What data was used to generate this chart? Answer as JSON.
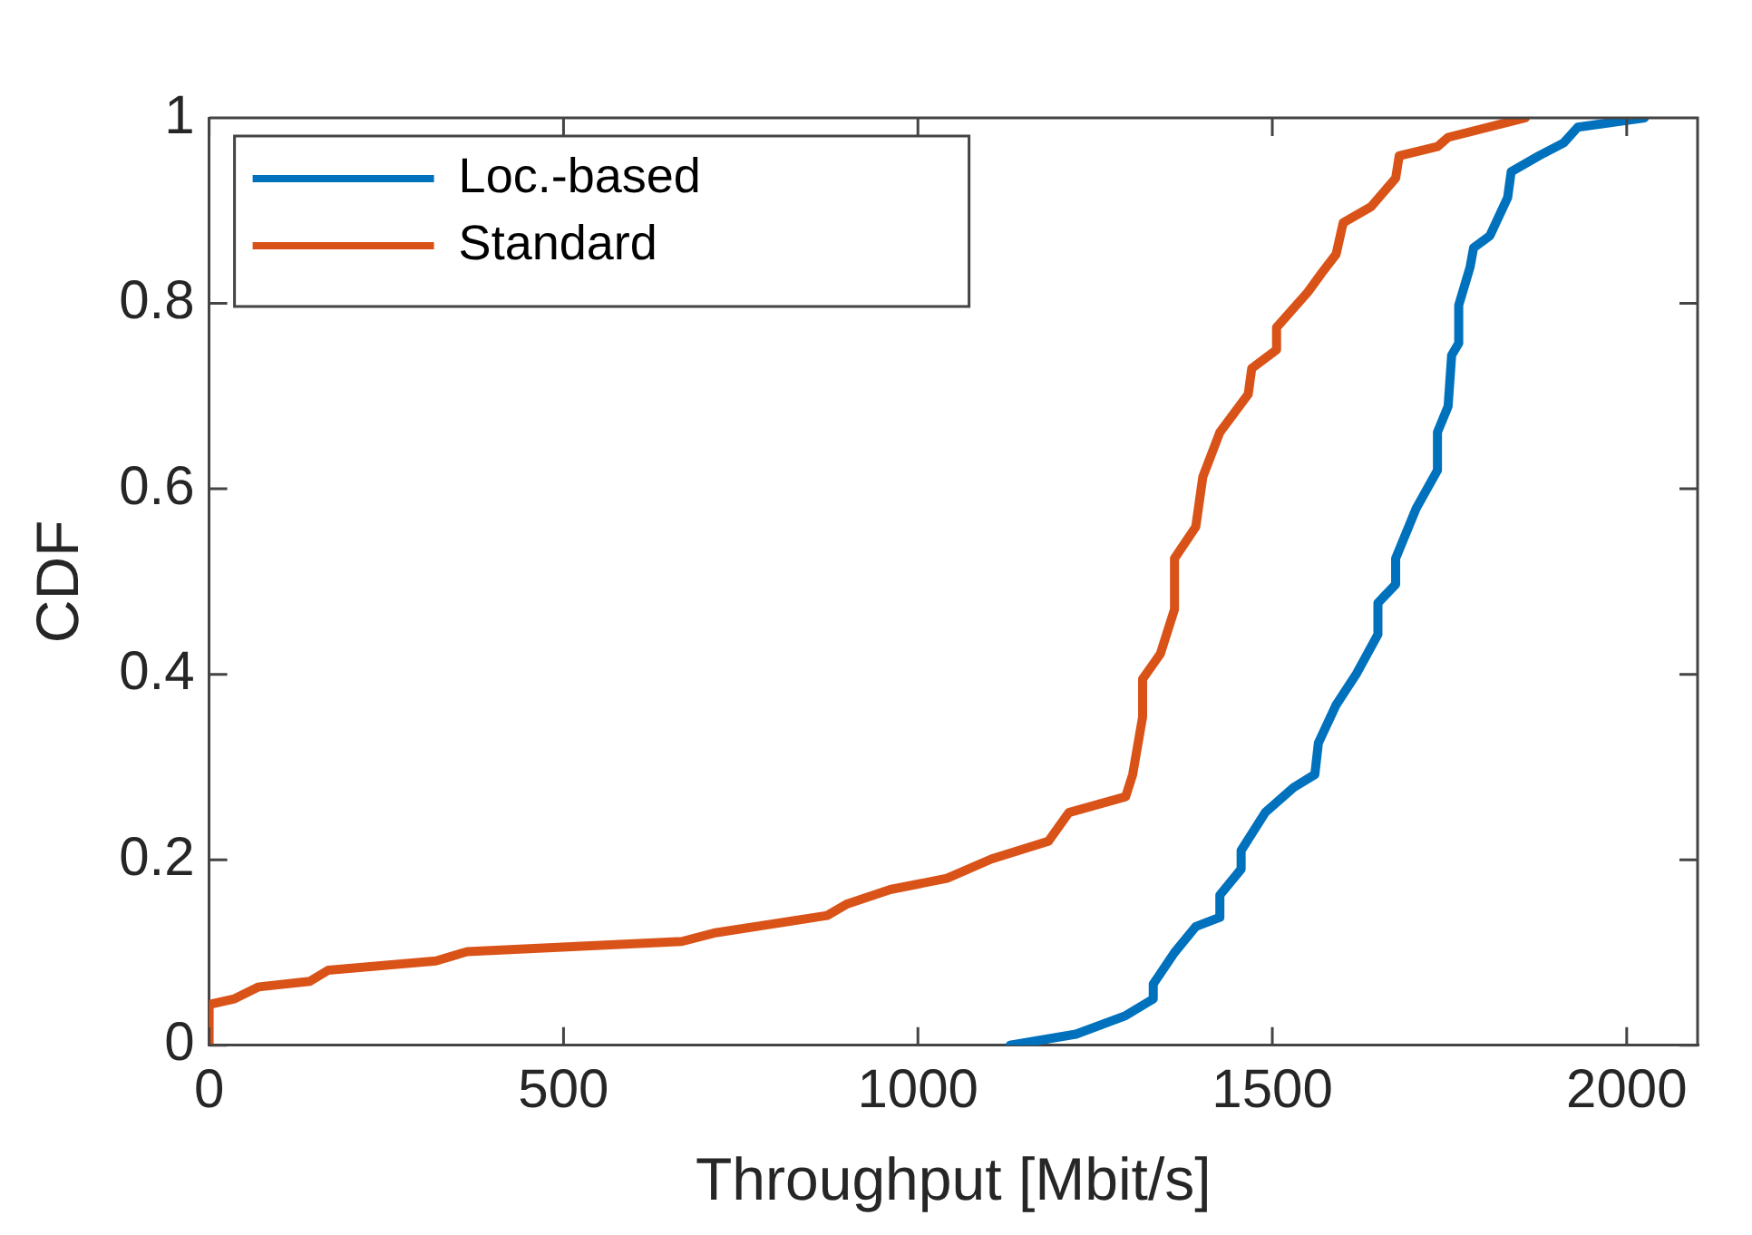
{
  "chart_data": {
    "type": "line",
    "xlabel": "Throughput [Mbit/s]",
    "ylabel": "CDF",
    "xlim": [
      0,
      2100
    ],
    "xticks": [
      0,
      500,
      1000,
      1500,
      2000
    ],
    "ylim": [
      0,
      1
    ],
    "yticks": [
      0,
      0.2,
      0.4,
      0.6,
      0.8,
      1
    ],
    "grid": false,
    "legend": "top left",
    "marker": "none",
    "line_style": "solid",
    "series": [
      {
        "name": "Loc.-based",
        "color": "#0072bd",
        "x": [
          1130,
          1223,
          1293,
          1332,
          1332,
          1362,
          1392,
          1426,
          1426,
          1456,
          1456,
          1490,
          1530,
          1560,
          1565,
          1590,
          1619,
          1649,
          1649,
          1674,
          1674,
          1703,
          1733,
          1733,
          1748,
          1753,
          1763,
          1763,
          1779,
          1784,
          1807,
          1832,
          1837,
          1876,
          1911,
          1931,
          2025
        ],
        "values": [
          0,
          0.012,
          0.032,
          0.05,
          0.066,
          0.1,
          0.128,
          0.138,
          0.162,
          0.19,
          0.21,
          0.251,
          0.278,
          0.292,
          0.326,
          0.367,
          0.401,
          0.443,
          0.477,
          0.497,
          0.525,
          0.579,
          0.62,
          0.661,
          0.689,
          0.744,
          0.757,
          0.798,
          0.839,
          0.86,
          0.873,
          0.914,
          0.942,
          0.959,
          0.973,
          0.99,
          1
        ]
      },
      {
        "name": "Standard",
        "color": "#d95319",
        "x": [
          0,
          0,
          35,
          70,
          142,
          168,
          320,
          364,
          667,
          712,
          872,
          899,
          961,
          1041,
          1104,
          1184,
          1213,
          1293,
          1303,
          1317,
          1317,
          1342,
          1362,
          1362,
          1392,
          1402,
          1426,
          1466,
          1471,
          1506,
          1506,
          1550,
          1570,
          1590,
          1600,
          1639,
          1674,
          1679,
          1733,
          1748,
          1857
        ],
        "values": [
          0,
          0.044,
          0.05,
          0.063,
          0.069,
          0.081,
          0.091,
          0.101,
          0.112,
          0.121,
          0.14,
          0.152,
          0.168,
          0.18,
          0.201,
          0.22,
          0.251,
          0.268,
          0.292,
          0.354,
          0.395,
          0.422,
          0.47,
          0.525,
          0.559,
          0.613,
          0.661,
          0.702,
          0.73,
          0.75,
          0.774,
          0.812,
          0.833,
          0.853,
          0.887,
          0.904,
          0.935,
          0.959,
          0.969,
          0.979,
          1
        ]
      }
    ]
  }
}
